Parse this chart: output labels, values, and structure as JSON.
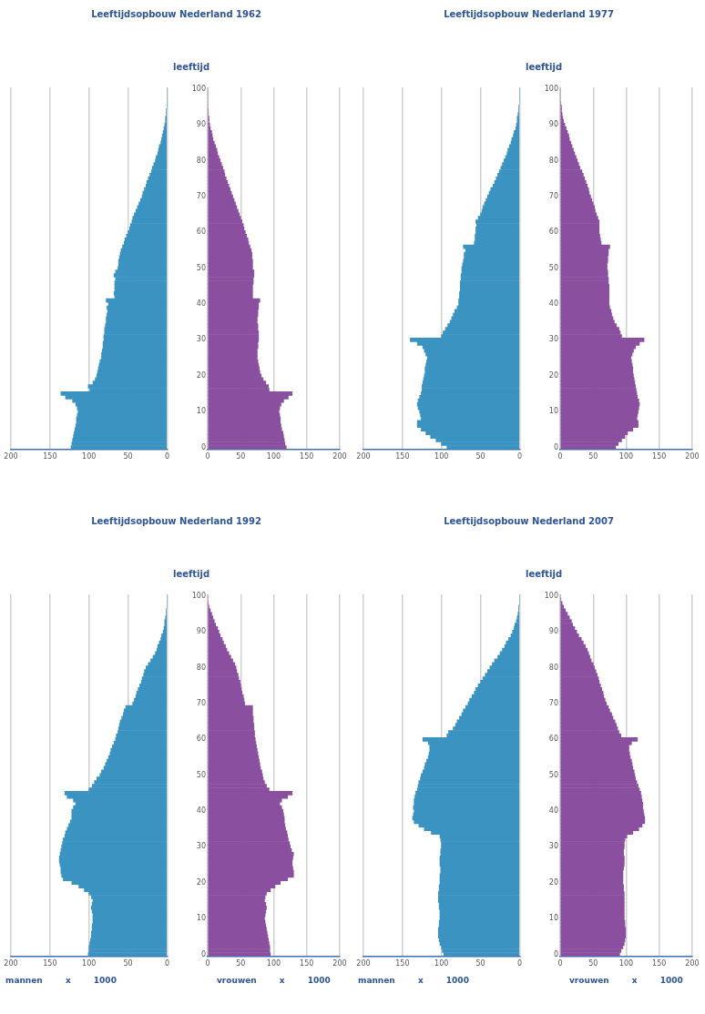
{
  "chart_data": [
    {
      "type": "bar",
      "orientation": "horizontal",
      "title": "Leeftijdsopbouw Nederland 1962",
      "categories": [
        "100",
        null,
        null,
        null,
        null,
        null,
        null,
        null,
        null,
        null,
        "90",
        null,
        null,
        null,
        null,
        null,
        null,
        null,
        null,
        null,
        "80",
        null,
        null,
        null,
        null,
        null,
        null,
        null,
        null,
        null,
        "70",
        null,
        null,
        null,
        null,
        null,
        null,
        null,
        null,
        null,
        "60",
        null,
        null,
        null,
        null,
        null,
        null,
        null,
        null,
        null,
        "50",
        null,
        null,
        null,
        null,
        null,
        null,
        null,
        null,
        null,
        "40",
        null,
        null,
        null,
        null,
        null,
        null,
        null,
        null,
        null,
        "30",
        null,
        null,
        null,
        null,
        null,
        null,
        null,
        null,
        null,
        "20",
        null,
        null,
        null,
        null,
        null,
        null,
        null,
        null,
        null,
        "10",
        null,
        null,
        null,
        null,
        null,
        null,
        null,
        null,
        null,
        "0"
      ],
      "series": [
        {
          "color": "#3a93c0",
          "values": [
            0,
            0,
            0,
            0,
            0,
            0,
            1,
            1,
            2,
            2,
            3,
            4,
            5,
            6,
            7,
            8,
            10,
            11,
            12,
            14,
            15,
            17,
            19,
            20,
            22,
            24,
            26,
            27,
            29,
            31,
            32,
            34,
            36,
            38,
            40,
            42,
            44,
            45,
            47,
            48,
            50,
            52,
            54,
            55,
            57,
            59,
            60,
            61,
            62,
            62,
            63,
            66,
            68,
            66,
            67,
            67,
            67,
            68,
            67,
            78,
            75,
            77,
            76,
            77,
            78,
            78,
            79,
            80,
            80,
            81,
            81,
            82,
            82,
            83,
            84,
            84,
            86,
            87,
            88,
            89,
            90,
            92,
            95,
            101,
            99,
            136,
            130,
            121,
            117,
            115,
            114,
            115,
            116,
            116,
            117,
            118,
            119,
            120,
            121,
            122,
            123
          ]
        }
      ],
      "xlim": [
        200,
        0
      ],
      "xticks": [
        200,
        150,
        100,
        50,
        0
      ],
      "grid": "x",
      "tick_labels": "x"
    },
    {
      "type": "bar",
      "orientation": "horizontal",
      "ylabel": "leeftijd",
      "categories": [
        "100",
        null,
        null,
        null,
        null,
        null,
        null,
        null,
        null,
        null,
        "90",
        null,
        null,
        null,
        null,
        null,
        null,
        null,
        null,
        null,
        "80",
        null,
        null,
        null,
        null,
        null,
        null,
        null,
        null,
        null,
        "70",
        null,
        null,
        null,
        null,
        null,
        null,
        null,
        null,
        null,
        "60",
        null,
        null,
        null,
        null,
        null,
        null,
        null,
        null,
        null,
        "50",
        null,
        null,
        null,
        null,
        null,
        null,
        null,
        null,
        null,
        "40",
        null,
        null,
        null,
        null,
        null,
        null,
        null,
        null,
        null,
        "30",
        null,
        null,
        null,
        null,
        null,
        null,
        null,
        null,
        null,
        "20",
        null,
        null,
        null,
        null,
        null,
        null,
        null,
        null,
        null,
        "10",
        null,
        null,
        null,
        null,
        null,
        null,
        null,
        null,
        null,
        "0"
      ],
      "series": [
        {
          "color": "#8a4f9e",
          "values": [
            0,
            0,
            0,
            0,
            0,
            0,
            1,
            1,
            2,
            2,
            3,
            4,
            6,
            7,
            8,
            10,
            12,
            14,
            15,
            17,
            19,
            21,
            23,
            25,
            26,
            28,
            30,
            32,
            34,
            36,
            38,
            40,
            42,
            44,
            46,
            48,
            50,
            52,
            54,
            55,
            57,
            59,
            61,
            62,
            64,
            66,
            67,
            67,
            68,
            68,
            68,
            70,
            70,
            69,
            69,
            68,
            68,
            68,
            68,
            79,
            77,
            77,
            76,
            76,
            75,
            75,
            76,
            76,
            77,
            77,
            77,
            76,
            76,
            75,
            75,
            75,
            76,
            77,
            78,
            79,
            81,
            84,
            88,
            92,
            93,
            128,
            122,
            115,
            111,
            109,
            108,
            109,
            110,
            110,
            111,
            112,
            114,
            115,
            116,
            117,
            119
          ]
        }
      ],
      "xlim": [
        0,
        200
      ],
      "xticks": [
        0,
        50,
        100,
        150,
        200
      ],
      "grid": "x"
    },
    {
      "type": "bar",
      "orientation": "horizontal",
      "title": "Leeftijdsopbouw Nederland 1977",
      "categories": [
        "100",
        null,
        null,
        null,
        null,
        null,
        null,
        null,
        null,
        null,
        "90",
        null,
        null,
        null,
        null,
        null,
        null,
        null,
        null,
        null,
        "80",
        null,
        null,
        null,
        null,
        null,
        null,
        null,
        null,
        null,
        "70",
        null,
        null,
        null,
        null,
        null,
        null,
        null,
        null,
        null,
        "60",
        null,
        null,
        null,
        null,
        null,
        null,
        null,
        null,
        null,
        "50",
        null,
        null,
        null,
        null,
        null,
        null,
        null,
        null,
        null,
        "40",
        null,
        null,
        null,
        null,
        null,
        null,
        null,
        null,
        null,
        "30",
        null,
        null,
        null,
        null,
        null,
        null,
        null,
        null,
        null,
        "20",
        null,
        null,
        null,
        null,
        null,
        null,
        null,
        null,
        null,
        "10",
        null,
        null,
        null,
        null,
        null,
        null,
        null,
        null,
        null,
        "0"
      ],
      "series": [
        {
          "color": "#3a93c0",
          "values": [
            0,
            0,
            0,
            0,
            0,
            1,
            1,
            2,
            3,
            3,
            4,
            5,
            7,
            8,
            10,
            11,
            13,
            15,
            16,
            18,
            20,
            22,
            24,
            26,
            28,
            30,
            32,
            34,
            37,
            39,
            41,
            43,
            45,
            47,
            48,
            50,
            53,
            56,
            55,
            56,
            56,
            57,
            57,
            58,
            72,
            69,
            71,
            71,
            72,
            73,
            74,
            74,
            75,
            75,
            76,
            76,
            76,
            77,
            77,
            78,
            78,
            80,
            83,
            85,
            87,
            89,
            92,
            95,
            98,
            100,
            140,
            131,
            124,
            122,
            120,
            118,
            119,
            120,
            121,
            121,
            122,
            123,
            124,
            125,
            125,
            126,
            128,
            130,
            131,
            130,
            128,
            127,
            126,
            131,
            131,
            126,
            120,
            114,
            107,
            100,
            93
          ]
        }
      ],
      "xlim": [
        200,
        0
      ],
      "xticks": [
        200,
        150,
        100,
        50,
        0
      ],
      "grid": "x",
      "tick_labels": "x"
    },
    {
      "type": "bar",
      "orientation": "horizontal",
      "ylabel": "leeftijd",
      "categories": [
        "100",
        null,
        null,
        null,
        null,
        null,
        null,
        null,
        null,
        null,
        "90",
        null,
        null,
        null,
        null,
        null,
        null,
        null,
        null,
        null,
        "80",
        null,
        null,
        null,
        null,
        null,
        null,
        null,
        null,
        null,
        "70",
        null,
        null,
        null,
        null,
        null,
        null,
        null,
        null,
        null,
        "60",
        null,
        null,
        null,
        null,
        null,
        null,
        null,
        null,
        null,
        "50",
        null,
        null,
        null,
        null,
        null,
        null,
        null,
        null,
        null,
        "40",
        null,
        null,
        null,
        null,
        null,
        null,
        null,
        null,
        null,
        "30",
        null,
        null,
        null,
        null,
        null,
        null,
        null,
        null,
        null,
        "20",
        null,
        null,
        null,
        null,
        null,
        null,
        null,
        null,
        null,
        "10",
        null,
        null,
        null,
        null,
        null,
        null,
        null,
        null,
        null,
        "0"
      ],
      "series": [
        {
          "color": "#8a4f9e",
          "values": [
            0,
            0,
            0,
            0,
            1,
            2,
            2,
            3,
            4,
            5,
            7,
            9,
            11,
            13,
            14,
            16,
            18,
            20,
            22,
            24,
            26,
            28,
            30,
            33,
            35,
            37,
            39,
            41,
            43,
            44,
            46,
            48,
            50,
            52,
            53,
            55,
            57,
            59,
            59,
            59,
            59,
            60,
            61,
            62,
            75,
            73,
            73,
            72,
            72,
            71,
            71,
            72,
            72,
            73,
            73,
            74,
            74,
            74,
            74,
            74,
            74,
            75,
            77,
            78,
            80,
            82,
            85,
            89,
            91,
            93,
            127,
            120,
            114,
            111,
            109,
            107,
            108,
            109,
            110,
            110,
            111,
            112,
            113,
            114,
            115,
            116,
            117,
            119,
            120,
            119,
            118,
            117,
            116,
            118,
            118,
            110,
            102,
            98,
            93,
            88,
            84
          ]
        }
      ],
      "xlim": [
        0,
        200
      ],
      "xticks": [
        0,
        50,
        100,
        150,
        200
      ],
      "grid": "x"
    },
    {
      "type": "bar",
      "orientation": "horizontal",
      "title": "Leeftijdsopbouw Nederland 1992",
      "xlabel": "mannen x 1000",
      "categories": [
        "100",
        null,
        null,
        null,
        null,
        null,
        null,
        null,
        null,
        null,
        "90",
        null,
        null,
        null,
        null,
        null,
        null,
        null,
        null,
        null,
        "80",
        null,
        null,
        null,
        null,
        null,
        null,
        null,
        null,
        null,
        "70",
        null,
        null,
        null,
        null,
        null,
        null,
        null,
        null,
        null,
        "60",
        null,
        null,
        null,
        null,
        null,
        null,
        null,
        null,
        null,
        "50",
        null,
        null,
        null,
        null,
        null,
        null,
        null,
        null,
        null,
        "40",
        null,
        null,
        null,
        null,
        null,
        null,
        null,
        null,
        null,
        "30",
        null,
        null,
        null,
        null,
        null,
        null,
        null,
        null,
        null,
        "20",
        null,
        null,
        null,
        null,
        null,
        null,
        null,
        null,
        null,
        "10",
        null,
        null,
        null,
        null,
        null,
        null,
        null,
        null,
        null,
        "0"
      ],
      "series": [
        {
          "color": "#3a93c0",
          "values": [
            0,
            0,
            0,
            0,
            1,
            1,
            2,
            3,
            3,
            4,
            5,
            7,
            8,
            10,
            12,
            13,
            15,
            18,
            21,
            24,
            27,
            29,
            30,
            32,
            33,
            35,
            37,
            39,
            40,
            42,
            44,
            53,
            55,
            56,
            58,
            60,
            61,
            62,
            63,
            65,
            66,
            68,
            70,
            72,
            73,
            75,
            77,
            79,
            81,
            84,
            86,
            90,
            93,
            96,
            100,
            131,
            128,
            120,
            117,
            120,
            122,
            122,
            122,
            124,
            126,
            128,
            130,
            131,
            133,
            134,
            135,
            136,
            137,
            138,
            138,
            137,
            136,
            136,
            135,
            133,
            122,
            113,
            106,
            100,
            97,
            95,
            96,
            97,
            96,
            95,
            95,
            95,
            96,
            96,
            97,
            97,
            98,
            99,
            100,
            100,
            101
          ]
        }
      ],
      "xlim": [
        200,
        0
      ],
      "xticks": [
        200,
        150,
        100,
        50,
        0
      ],
      "grid": "x",
      "tick_labels": "x"
    },
    {
      "type": "bar",
      "orientation": "horizontal",
      "ylabel": "leeftijd",
      "xlabel": "vrouwen x 1000",
      "categories": [
        "100",
        null,
        null,
        null,
        null,
        null,
        null,
        null,
        null,
        null,
        "90",
        null,
        null,
        null,
        null,
        null,
        null,
        null,
        null,
        null,
        "80",
        null,
        null,
        null,
        null,
        null,
        null,
        null,
        null,
        null,
        "70",
        null,
        null,
        null,
        null,
        null,
        null,
        null,
        null,
        null,
        "60",
        null,
        null,
        null,
        null,
        null,
        null,
        null,
        null,
        null,
        "50",
        null,
        null,
        null,
        null,
        null,
        null,
        null,
        null,
        null,
        "40",
        null,
        null,
        null,
        null,
        null,
        null,
        null,
        null,
        null,
        "30",
        null,
        null,
        null,
        null,
        null,
        null,
        null,
        null,
        null,
        "20",
        null,
        null,
        null,
        null,
        null,
        null,
        null,
        null,
        null,
        "10",
        null,
        null,
        null,
        null,
        null,
        null,
        null,
        null,
        null,
        "0"
      ],
      "series": [
        {
          "color": "#8a4f9e",
          "values": [
            0,
            0,
            1,
            2,
            4,
            6,
            8,
            10,
            12,
            15,
            17,
            19,
            22,
            24,
            27,
            29,
            32,
            35,
            38,
            41,
            43,
            44,
            46,
            47,
            49,
            50,
            51,
            52,
            54,
            55,
            56,
            68,
            68,
            68,
            69,
            69,
            70,
            70,
            71,
            71,
            72,
            73,
            74,
            75,
            76,
            77,
            78,
            79,
            80,
            82,
            83,
            84,
            86,
            89,
            93,
            128,
            121,
            112,
            109,
            112,
            114,
            115,
            116,
            116,
            117,
            118,
            120,
            121,
            122,
            124,
            125,
            127,
            130,
            129,
            128,
            128,
            129,
            130,
            130,
            121,
            110,
            102,
            95,
            89,
            87,
            86,
            88,
            89,
            88,
            87,
            86,
            87,
            88,
            89,
            90,
            91,
            92,
            93,
            94,
            94,
            95
          ]
        }
      ],
      "xlim": [
        0,
        200
      ],
      "xticks": [
        0,
        50,
        100,
        150,
        200
      ],
      "grid": "x"
    },
    {
      "type": "bar",
      "orientation": "horizontal",
      "title": "Leeftijdsopbouw Nederland 2007",
      "xlabel": "mannen x 1000",
      "categories": [
        "100",
        null,
        null,
        null,
        null,
        null,
        null,
        null,
        null,
        null,
        "90",
        null,
        null,
        null,
        null,
        null,
        null,
        null,
        null,
        null,
        "80",
        null,
        null,
        null,
        null,
        null,
        null,
        null,
        null,
        null,
        "70",
        null,
        null,
        null,
        null,
        null,
        null,
        null,
        null,
        null,
        "60",
        null,
        null,
        null,
        null,
        null,
        null,
        null,
        null,
        null,
        "50",
        null,
        null,
        null,
        null,
        null,
        null,
        null,
        null,
        null,
        "40",
        null,
        null,
        null,
        null,
        null,
        null,
        null,
        null,
        null,
        "30",
        null,
        null,
        null,
        null,
        null,
        null,
        null,
        null,
        null,
        "20",
        null,
        null,
        null,
        null,
        null,
        null,
        null,
        null,
        null,
        "10",
        null,
        null,
        null,
        null,
        null,
        null,
        null,
        null,
        null,
        "0"
      ],
      "series": [
        {
          "color": "#3a93c0",
          "values": [
            0,
            0,
            0,
            1,
            1,
            2,
            3,
            4,
            6,
            7,
            9,
            11,
            14,
            17,
            19,
            22,
            25,
            28,
            32,
            35,
            38,
            41,
            44,
            47,
            50,
            53,
            56,
            58,
            61,
            64,
            66,
            69,
            72,
            74,
            77,
            80,
            82,
            85,
            91,
            93,
            124,
            117,
            115,
            115,
            116,
            117,
            119,
            121,
            122,
            124,
            126,
            127,
            129,
            130,
            131,
            133,
            134,
            135,
            135,
            136,
            135,
            136,
            137,
            135,
            129,
            122,
            113,
            102,
            101,
            100,
            100,
            101,
            101,
            102,
            102,
            102,
            101,
            101,
            102,
            102,
            102,
            103,
            103,
            104,
            104,
            104,
            103,
            103,
            102,
            102,
            102,
            103,
            103,
            104,
            104,
            104,
            103,
            102,
            100,
            99,
            97
          ]
        }
      ],
      "xlim": [
        200,
        0
      ],
      "xticks": [
        200,
        150,
        100,
        50,
        0
      ],
      "grid": "x",
      "tick_labels": "x"
    },
    {
      "type": "bar",
      "orientation": "horizontal",
      "ylabel": "leeftijd",
      "xlabel": "vrouwen x 1000",
      "categories": [
        "100",
        null,
        null,
        null,
        null,
        null,
        null,
        null,
        null,
        null,
        "90",
        null,
        null,
        null,
        null,
        null,
        null,
        null,
        null,
        null,
        "80",
        null,
        null,
        null,
        null,
        null,
        null,
        null,
        null,
        null,
        "70",
        null,
        null,
        null,
        null,
        null,
        null,
        null,
        null,
        null,
        "60",
        null,
        null,
        null,
        null,
        null,
        null,
        null,
        null,
        null,
        "50",
        null,
        null,
        null,
        null,
        null,
        null,
        null,
        null,
        null,
        "40",
        null,
        null,
        null,
        null,
        null,
        null,
        null,
        null,
        null,
        "30",
        null,
        null,
        null,
        null,
        null,
        null,
        null,
        null,
        null,
        "20",
        null,
        null,
        null,
        null,
        null,
        null,
        null,
        null,
        null,
        "10",
        null,
        null,
        null,
        null,
        null,
        null,
        null,
        null,
        null,
        "0"
      ],
      "series": [
        {
          "color": "#8a4f9e",
          "values": [
            0,
            1,
            3,
            5,
            8,
            11,
            14,
            17,
            19,
            22,
            25,
            28,
            32,
            35,
            38,
            41,
            43,
            45,
            47,
            50,
            52,
            54,
            56,
            58,
            59,
            61,
            63,
            65,
            66,
            68,
            70,
            73,
            75,
            78,
            80,
            83,
            85,
            87,
            89,
            92,
            117,
            108,
            104,
            104,
            105,
            106,
            108,
            109,
            110,
            112,
            113,
            114,
            116,
            118,
            120,
            122,
            123,
            124,
            125,
            125,
            126,
            127,
            128,
            128,
            124,
            119,
            110,
            101,
            98,
            97,
            97,
            96,
            96,
            97,
            97,
            97,
            96,
            95,
            95,
            95,
            95,
            96,
            96,
            97,
            97,
            97,
            97,
            97,
            97,
            97,
            97,
            98,
            98,
            99,
            99,
            99,
            98,
            97,
            95,
            92,
            90
          ]
        }
      ],
      "xlim": [
        0,
        200
      ],
      "xticks": [
        0,
        50,
        100,
        150,
        200
      ],
      "grid": "x"
    }
  ]
}
